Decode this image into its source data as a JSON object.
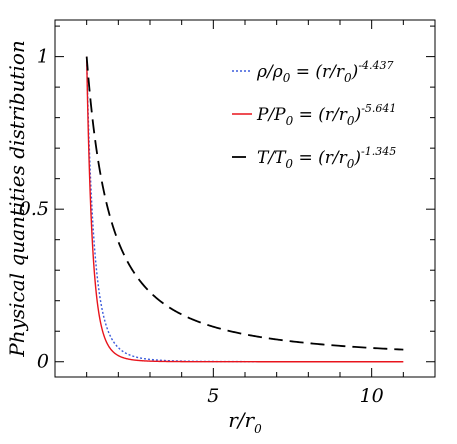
{
  "chart_data": {
    "type": "line",
    "xlabel": {
      "main": "r/r",
      "sub": "0"
    },
    "ylabel": "Physical quantities distribution",
    "xlim": [
      0,
      12
    ],
    "ylim": [
      -0.05,
      1.12
    ],
    "x_ticks": [
      {
        "value": 5,
        "label": "5"
      },
      {
        "value": 10,
        "label": "10"
      }
    ],
    "y_ticks": [
      {
        "value": 0,
        "label": "0"
      },
      {
        "value": 0.5,
        "label": "0.5"
      },
      {
        "value": 1,
        "label": "1"
      }
    ],
    "x_minor_step": 1,
    "y_minor_step": 0.1,
    "x_range": [
      1,
      11
    ],
    "grid": false,
    "legend_position": "top-right",
    "series": [
      {
        "quantity": "ρ/ρ",
        "ref": "0",
        "exponent": -4.437,
        "exponent_label": "-4.437",
        "color": "#3b5bdb",
        "style": "dotted"
      },
      {
        "quantity": "P/P",
        "ref": "0",
        "exponent": -5.641,
        "exponent_label": "-5.641",
        "color": "#e8141c",
        "style": "solid"
      },
      {
        "quantity": "T/T",
        "ref": "0",
        "exponent": -1.345,
        "exponent_label": "-1.345",
        "color": "#000000",
        "style": "dashed"
      }
    ],
    "legend_equals": "=",
    "legend_rhs": {
      "open": "(r/r",
      "sub": "0",
      "close": ")"
    }
  }
}
